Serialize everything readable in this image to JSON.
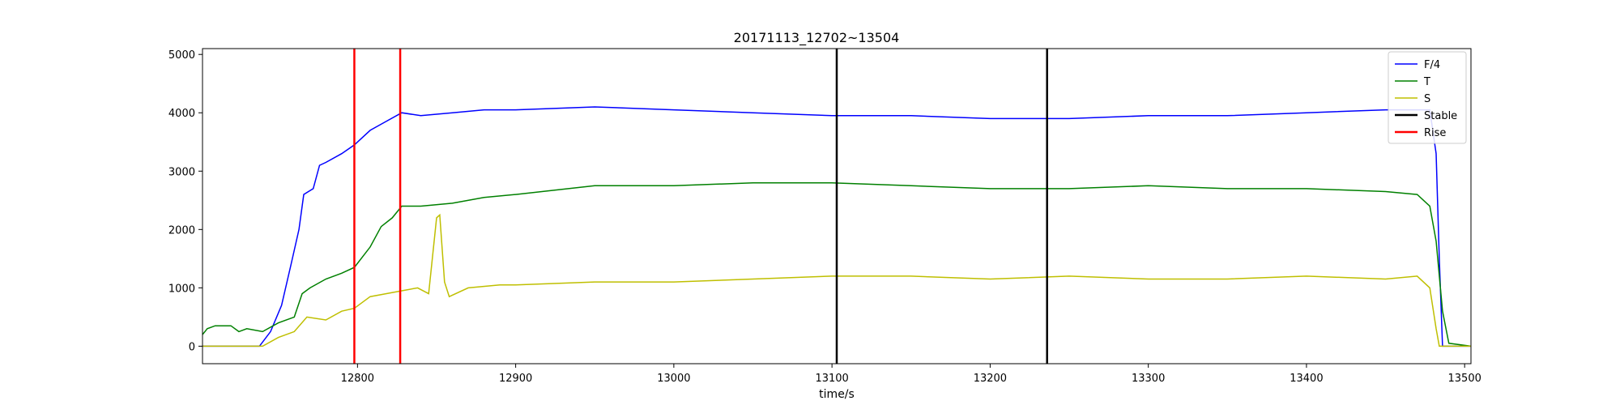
{
  "chart_data": {
    "type": "line",
    "title": "20171113_12702~13504",
    "xlabel": "time/s",
    "ylabel": "",
    "xlim": [
      12702,
      13504
    ],
    "ylim": [
      -300,
      5100
    ],
    "xticks": [
      12800,
      12900,
      13000,
      13100,
      13200,
      13300,
      13400,
      13500
    ],
    "yticks": [
      0,
      1000,
      2000,
      3000,
      4000,
      5000
    ],
    "grid": false,
    "legend_position": "top-right",
    "series": [
      {
        "name": "F/4",
        "color": "#0000ff",
        "x": [
          12702,
          12738,
          12745,
          12752,
          12758,
          12763,
          12766,
          12772,
          12776,
          12780,
          12790,
          12798,
          12808,
          12818,
          12828,
          12840,
          12860,
          12880,
          12900,
          12950,
          13000,
          13050,
          13100,
          13150,
          13200,
          13250,
          13300,
          13350,
          13400,
          13450,
          13478,
          13482,
          13484,
          13486,
          13504
        ],
        "y": [
          0,
          0,
          250,
          700,
          1400,
          2000,
          2600,
          2700,
          3100,
          3150,
          3300,
          3450,
          3700,
          3850,
          4000,
          3950,
          4000,
          4050,
          4050,
          4100,
          4050,
          4000,
          3950,
          3950,
          3900,
          3900,
          3950,
          3950,
          4000,
          4050,
          4050,
          3300,
          1500,
          0,
          0
        ]
      },
      {
        "name": "T",
        "color": "#008000",
        "x": [
          12702,
          12705,
          12710,
          12720,
          12725,
          12730,
          12740,
          12750,
          12760,
          12765,
          12770,
          12780,
          12790,
          12798,
          12808,
          12815,
          12822,
          12828,
          12840,
          12860,
          12880,
          12900,
          12950,
          13000,
          13050,
          13100,
          13150,
          13200,
          13250,
          13300,
          13350,
          13400,
          13450,
          13470,
          13478,
          13482,
          13486,
          13490,
          13504
        ],
        "y": [
          200,
          300,
          350,
          350,
          250,
          300,
          250,
          400,
          500,
          900,
          1000,
          1150,
          1250,
          1350,
          1700,
          2050,
          2200,
          2400,
          2400,
          2450,
          2550,
          2600,
          2750,
          2750,
          2800,
          2800,
          2750,
          2700,
          2700,
          2750,
          2700,
          2700,
          2650,
          2600,
          2400,
          1800,
          600,
          50,
          0
        ]
      },
      {
        "name": "S",
        "color": "#bfbf00",
        "x": [
          12702,
          12740,
          12750,
          12760,
          12768,
          12780,
          12790,
          12798,
          12808,
          12818,
          12828,
          12838,
          12845,
          12850,
          12852,
          12855,
          12858,
          12870,
          12890,
          12900,
          12950,
          13000,
          13050,
          13100,
          13150,
          13200,
          13250,
          13300,
          13350,
          13400,
          13450,
          13470,
          13478,
          13482,
          13484,
          13504
        ],
        "y": [
          0,
          0,
          150,
          250,
          500,
          450,
          600,
          650,
          850,
          900,
          950,
          1000,
          900,
          2200,
          2250,
          1100,
          850,
          1000,
          1050,
          1050,
          1100,
          1100,
          1150,
          1200,
          1200,
          1150,
          1200,
          1150,
          1150,
          1200,
          1150,
          1200,
          1000,
          300,
          0,
          0
        ]
      }
    ],
    "vlines": [
      {
        "name": "Stable",
        "color": "#000000",
        "x": [
          13103,
          13236
        ]
      },
      {
        "name": "Rise",
        "color": "#ff0000",
        "x": [
          12798,
          12827
        ]
      }
    ]
  }
}
